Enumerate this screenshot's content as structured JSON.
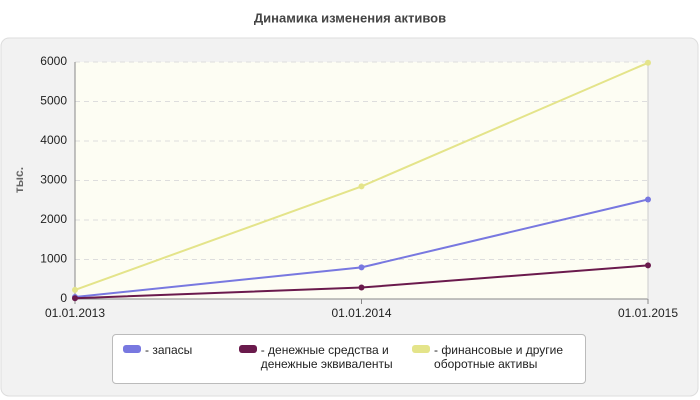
{
  "chart_data": {
    "type": "line",
    "title": "Динамика изменения активов",
    "y_label": "тыс.",
    "categories": [
      "01.01.2013",
      "01.01.2014",
      "01.01.2015"
    ],
    "series": [
      {
        "name": "- запасы",
        "color": "#7878e0",
        "values": [
          50,
          800,
          2520
        ]
      },
      {
        "name": "- денежные средства и денежные эквиваленты",
        "color": "#6a1a4c",
        "values": [
          20,
          290,
          850
        ]
      },
      {
        "name": "- финансовые и другие оборотные активы",
        "color": "#e4e48a",
        "values": [
          230,
          2850,
          5980
        ]
      }
    ],
    "ylim": [
      0,
      6000
    ],
    "yticks": [
      0,
      1000,
      2000,
      3000,
      4000,
      5000,
      6000
    ],
    "grid": true
  }
}
